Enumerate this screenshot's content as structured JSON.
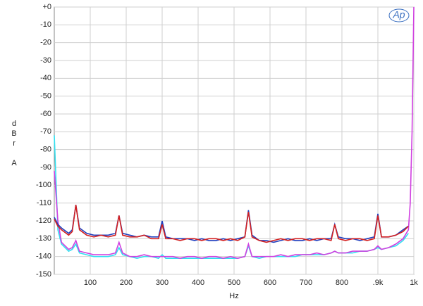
{
  "chart_data": {
    "type": "line",
    "logo": "Ap",
    "xlabel": "Hz",
    "ylabel": "dBr A",
    "xlim": [
      0,
      1000
    ],
    "ylim": [
      -150,
      0
    ],
    "xticks": [
      100,
      200,
      300,
      400,
      500,
      600,
      700,
      800,
      {
        "value": 900,
        "label": ".9k"
      },
      {
        "value": 1000,
        "label": "1k"
      }
    ],
    "yticks": [
      {
        "value": 0,
        "label": "+0"
      },
      -10,
      -20,
      -30,
      -40,
      -50,
      -60,
      -70,
      -80,
      -90,
      -100,
      -110,
      -120,
      -130,
      -140,
      -150
    ],
    "grid": true,
    "x": [
      0,
      10,
      20,
      40,
      50,
      60,
      70,
      90,
      110,
      130,
      150,
      170,
      180,
      190,
      210,
      230,
      250,
      270,
      290,
      300,
      310,
      330,
      350,
      370,
      390,
      410,
      430,
      450,
      470,
      490,
      510,
      530,
      540,
      550,
      570,
      590,
      610,
      630,
      650,
      670,
      690,
      710,
      730,
      750,
      770,
      780,
      790,
      810,
      830,
      850,
      870,
      890,
      900,
      910,
      930,
      950,
      970,
      985,
      990,
      995,
      1000
    ],
    "series": [
      {
        "color": "#30e0f0",
        "values": [
          -72,
          -125,
          -133,
          -137,
          -136,
          -133,
          -138,
          -139,
          -140,
          -140,
          -140,
          -139,
          -135,
          -139,
          -140,
          -141,
          -140,
          -140,
          -141,
          -139,
          -141,
          -141,
          -141,
          -141,
          -141,
          -141,
          -141,
          -141,
          -141,
          -141,
          -141,
          -140,
          -134,
          -140,
          -141,
          -140,
          -140,
          -140,
          -140,
          -140,
          -139,
          -139,
          -139,
          -139,
          -138,
          -137,
          -138,
          -138,
          -138,
          -137,
          -137,
          -136,
          -135,
          -136,
          -135,
          -134,
          -131,
          -127,
          null,
          null,
          null
        ]
      },
      {
        "color": "#d040e0",
        "values": [
          -92,
          -120,
          -132,
          -136,
          -135,
          -131,
          -137,
          -138,
          -139,
          -139,
          -139,
          -138,
          -132,
          -138,
          -140,
          -140,
          -139,
          -140,
          -140,
          -140,
          -140,
          -140,
          -141,
          -140,
          -140,
          -141,
          -140,
          -140,
          -141,
          -140,
          -141,
          -140,
          -133,
          -140,
          -140,
          -140,
          -140,
          -139,
          -140,
          -139,
          -139,
          -139,
          -138,
          -139,
          -138,
          -137,
          -138,
          -138,
          -137,
          -137,
          -137,
          -136,
          -134,
          -136,
          -135,
          -133,
          -130,
          -125,
          -110,
          -70,
          0
        ]
      },
      {
        "color": "#1f3fbf",
        "values": [
          -118,
          -122,
          -124,
          -127,
          -125,
          -111,
          -124,
          -127,
          -128,
          -128,
          -128,
          -127,
          -117,
          -127,
          -128,
          -129,
          -128,
          -129,
          -129,
          -120,
          -129,
          -130,
          -130,
          -130,
          -131,
          -130,
          -131,
          -131,
          -130,
          -131,
          -130,
          -129,
          -114,
          -128,
          -131,
          -131,
          -132,
          -131,
          -130,
          -131,
          -131,
          -130,
          -131,
          -130,
          -130,
          -122,
          -129,
          -130,
          -130,
          -131,
          -130,
          -129,
          -116,
          -129,
          -129,
          -128,
          -125,
          -123,
          null,
          null,
          null
        ]
      },
      {
        "color": "#d42020",
        "values": [
          -119,
          -123,
          -125,
          -128,
          -126,
          -111,
          -125,
          -128,
          -129,
          -128,
          -129,
          -128,
          -117,
          -128,
          -129,
          -129,
          -128,
          -130,
          -130,
          -122,
          -130,
          -130,
          -131,
          -130,
          -130,
          -131,
          -130,
          -130,
          -131,
          -130,
          -131,
          -129,
          -115,
          -129,
          -131,
          -132,
          -131,
          -130,
          -131,
          -130,
          -130,
          -131,
          -130,
          -130,
          -131,
          -122,
          -130,
          -131,
          -130,
          -130,
          -131,
          -130,
          -117,
          -129,
          -129,
          -128,
          -126,
          -123,
          null,
          null,
          null
        ]
      }
    ]
  }
}
